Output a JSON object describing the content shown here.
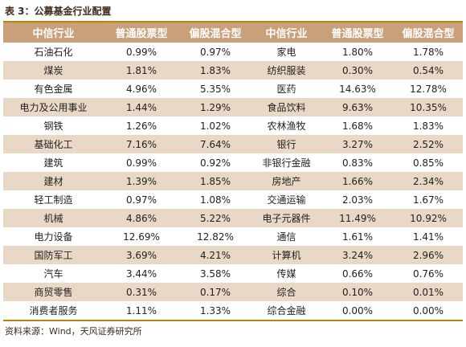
{
  "caption": "表 3：公募基金行业配置",
  "headers": [
    "中信行业",
    "普通股票型",
    "偏股混合型",
    "中信行业",
    "普通股票型",
    "偏股混合型"
  ],
  "rows": [
    [
      "石油石化",
      "0.99%",
      "0.97%",
      "家电",
      "1.80%",
      "1.78%"
    ],
    [
      "煤炭",
      "1.81%",
      "1.83%",
      "纺织服装",
      "0.30%",
      "0.54%"
    ],
    [
      "有色金属",
      "4.96%",
      "5.35%",
      "医药",
      "14.63%",
      "12.78%"
    ],
    [
      "电力及公用事业",
      "1.44%",
      "1.29%",
      "食品饮料",
      "9.63%",
      "10.35%"
    ],
    [
      "钢铁",
      "1.26%",
      "1.02%",
      "农林渔牧",
      "1.68%",
      "1.83%"
    ],
    [
      "基础化工",
      "7.16%",
      "7.64%",
      "银行",
      "3.27%",
      "2.52%"
    ],
    [
      "建筑",
      "0.99%",
      "0.92%",
      "非银行金融",
      "0.83%",
      "0.85%"
    ],
    [
      "建材",
      "1.39%",
      "1.85%",
      "房地产",
      "1.66%",
      "2.34%"
    ],
    [
      "轻工制造",
      "0.97%",
      "1.08%",
      "交通运输",
      "2.03%",
      "1.67%"
    ],
    [
      "机械",
      "4.86%",
      "5.22%",
      "电子元器件",
      "11.49%",
      "10.92%"
    ],
    [
      "电力设备",
      "12.69%",
      "12.82%",
      "通信",
      "1.61%",
      "1.41%"
    ],
    [
      "国防军工",
      "3.69%",
      "4.21%",
      "计算机",
      "3.24%",
      "2.96%"
    ],
    [
      "汽车",
      "3.44%",
      "3.58%",
      "传媒",
      "0.66%",
      "0.76%"
    ],
    [
      "商贸零售",
      "0.31%",
      "0.17%",
      "综合",
      "0.10%",
      "0.01%"
    ],
    [
      "消费者服务",
      "1.11%",
      "1.33%",
      "综合金融",
      "0.00%",
      "0.00%"
    ]
  ],
  "source": "资料来源：Wind，天风证券研究所",
  "colors": {
    "header_bg": "#c9a079",
    "stripe_bg": "#ead8c6",
    "rule": "#b8860b"
  }
}
